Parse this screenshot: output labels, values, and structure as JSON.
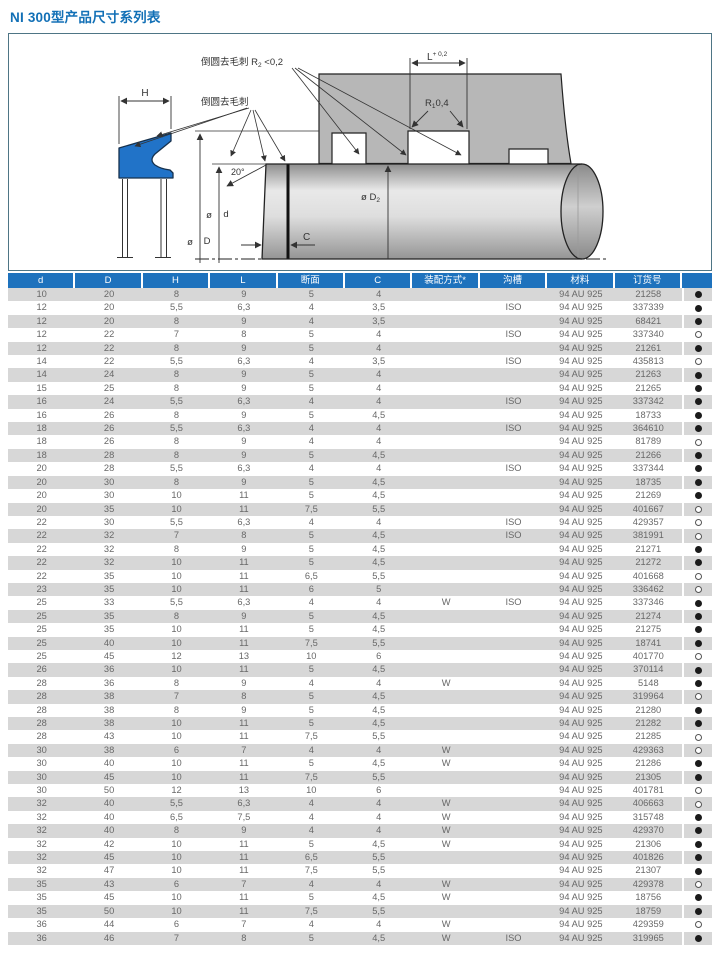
{
  "page": {
    "title": "NI 300型产品尺寸系列表"
  },
  "diagram": {
    "labels": {
      "deburr_note_r": "倒圆去毛刺 R",
      "deburr_note_r_sub": "2",
      "deburr_note_r_tol": " <0,2",
      "deburr_note": "倒圆去毛刺",
      "dim_h": "H",
      "dim_l": "L",
      "dim_l_tol": "+ 0,2",
      "radius_r": "R",
      "radius_r_sub": "1",
      "radius_val": "0,4",
      "angle": "20°",
      "dim_c": "C",
      "dia_d_prefix": "ø",
      "dia_d": "d",
      "dia_D_prefix": "ø",
      "dia_D": "D",
      "dia_D2": "ø D",
      "dia_D2_sub": "2"
    }
  },
  "table": {
    "headers": [
      "d",
      "D",
      "H",
      "L",
      "断面",
      "C",
      "装配方式*",
      "沟槽",
      "材料",
      "订货号",
      ""
    ],
    "rows": [
      [
        "10",
        "20",
        "8",
        "9",
        "5",
        "4",
        "",
        "",
        "94 AU 925",
        "21258",
        "filled"
      ],
      [
        "12",
        "20",
        "5,5",
        "6,3",
        "4",
        "3,5",
        "",
        "ISO",
        "94 AU 925",
        "337339",
        "filled"
      ],
      [
        "12",
        "20",
        "8",
        "9",
        "4",
        "3,5",
        "",
        "",
        "94 AU 925",
        "68421",
        "filled"
      ],
      [
        "12",
        "22",
        "7",
        "8",
        "5",
        "4",
        "",
        "ISO",
        "94 AU 925",
        "337340",
        "open"
      ],
      [
        "12",
        "22",
        "8",
        "9",
        "5",
        "4",
        "",
        "",
        "94 AU 925",
        "21261",
        "filled"
      ],
      [
        "14",
        "22",
        "5,5",
        "6,3",
        "4",
        "3,5",
        "",
        "ISO",
        "94 AU 925",
        "435813",
        "open"
      ],
      [
        "14",
        "24",
        "8",
        "9",
        "5",
        "4",
        "",
        "",
        "94 AU 925",
        "21263",
        "filled"
      ],
      [
        "15",
        "25",
        "8",
        "9",
        "5",
        "4",
        "",
        "",
        "94 AU 925",
        "21265",
        "filled"
      ],
      [
        "16",
        "24",
        "5,5",
        "6,3",
        "4",
        "4",
        "",
        "ISO",
        "94 AU 925",
        "337342",
        "filled"
      ],
      [
        "16",
        "26",
        "8",
        "9",
        "5",
        "4,5",
        "",
        "",
        "94 AU 925",
        "18733",
        "filled"
      ],
      [
        "18",
        "26",
        "5,5",
        "6,3",
        "4",
        "4",
        "",
        "ISO",
        "94 AU 925",
        "364610",
        "filled"
      ],
      [
        "18",
        "26",
        "8",
        "9",
        "4",
        "4",
        "",
        "",
        "94 AU 925",
        "81789",
        "open"
      ],
      [
        "18",
        "28",
        "8",
        "9",
        "5",
        "4,5",
        "",
        "",
        "94 AU 925",
        "21266",
        "filled"
      ],
      [
        "20",
        "28",
        "5,5",
        "6,3",
        "4",
        "4",
        "",
        "ISO",
        "94 AU 925",
        "337344",
        "filled"
      ],
      [
        "20",
        "30",
        "8",
        "9",
        "5",
        "4,5",
        "",
        "",
        "94 AU 925",
        "18735",
        "filled"
      ],
      [
        "20",
        "30",
        "10",
        "11",
        "5",
        "4,5",
        "",
        "",
        "94 AU 925",
        "21269",
        "filled"
      ],
      [
        "20",
        "35",
        "10",
        "11",
        "7,5",
        "5,5",
        "",
        "",
        "94 AU 925",
        "401667",
        "open"
      ],
      [
        "22",
        "30",
        "5,5",
        "6,3",
        "4",
        "4",
        "",
        "ISO",
        "94 AU 925",
        "429357",
        "open"
      ],
      [
        "22",
        "32",
        "7",
        "8",
        "5",
        "4,5",
        "",
        "ISO",
        "94 AU 925",
        "381991",
        "open"
      ],
      [
        "22",
        "32",
        "8",
        "9",
        "5",
        "4,5",
        "",
        "",
        "94 AU 925",
        "21271",
        "filled"
      ],
      [
        "22",
        "32",
        "10",
        "11",
        "5",
        "4,5",
        "",
        "",
        "94 AU 925",
        "21272",
        "filled"
      ],
      [
        "22",
        "35",
        "10",
        "11",
        "6,5",
        "5,5",
        "",
        "",
        "94 AU 925",
        "401668",
        "open"
      ],
      [
        "23",
        "35",
        "10",
        "11",
        "6",
        "5",
        "",
        "",
        "94 AU 925",
        "336462",
        "open"
      ],
      [
        "25",
        "33",
        "5,5",
        "6,3",
        "4",
        "4",
        "W",
        "ISO",
        "94 AU 925",
        "337346",
        "filled"
      ],
      [
        "25",
        "35",
        "8",
        "9",
        "5",
        "4,5",
        "",
        "",
        "94 AU 925",
        "21274",
        "filled"
      ],
      [
        "25",
        "35",
        "10",
        "11",
        "5",
        "4,5",
        "",
        "",
        "94 AU 925",
        "21275",
        "filled"
      ],
      [
        "25",
        "40",
        "10",
        "11",
        "7,5",
        "5,5",
        "",
        "",
        "94 AU 925",
        "18741",
        "filled"
      ],
      [
        "25",
        "45",
        "12",
        "13",
        "10",
        "6",
        "",
        "",
        "94 AU 925",
        "401770",
        "open"
      ],
      [
        "26",
        "36",
        "10",
        "11",
        "5",
        "4,5",
        "",
        "",
        "94 AU 925",
        "370114",
        "filled"
      ],
      [
        "28",
        "36",
        "8",
        "9",
        "4",
        "4",
        "W",
        "",
        "94 AU 925",
        "5148",
        "filled"
      ],
      [
        "28",
        "38",
        "7",
        "8",
        "5",
        "4,5",
        "",
        "",
        "94 AU 925",
        "319964",
        "open"
      ],
      [
        "28",
        "38",
        "8",
        "9",
        "5",
        "4,5",
        "",
        "",
        "94 AU 925",
        "21280",
        "filled"
      ],
      [
        "28",
        "38",
        "10",
        "11",
        "5",
        "4,5",
        "",
        "",
        "94 AU 925",
        "21282",
        "filled"
      ],
      [
        "28",
        "43",
        "10",
        "11",
        "7,5",
        "5,5",
        "",
        "",
        "94 AU 925",
        "21285",
        "open"
      ],
      [
        "30",
        "38",
        "6",
        "7",
        "4",
        "4",
        "W",
        "",
        "94 AU 925",
        "429363",
        "open"
      ],
      [
        "30",
        "40",
        "10",
        "11",
        "5",
        "4,5",
        "W",
        "",
        "94 AU 925",
        "21286",
        "filled"
      ],
      [
        "30",
        "45",
        "10",
        "11",
        "7,5",
        "5,5",
        "",
        "",
        "94 AU 925",
        "21305",
        "filled"
      ],
      [
        "30",
        "50",
        "12",
        "13",
        "10",
        "6",
        "",
        "",
        "94 AU 925",
        "401781",
        "open"
      ],
      [
        "32",
        "40",
        "5,5",
        "6,3",
        "4",
        "4",
        "W",
        "",
        "94 AU 925",
        "406663",
        "open"
      ],
      [
        "32",
        "40",
        "6,5",
        "7,5",
        "4",
        "4",
        "W",
        "",
        "94 AU 925",
        "315748",
        "filled"
      ],
      [
        "32",
        "40",
        "8",
        "9",
        "4",
        "4",
        "W",
        "",
        "94 AU 925",
        "429370",
        "filled"
      ],
      [
        "32",
        "42",
        "10",
        "11",
        "5",
        "4,5",
        "W",
        "",
        "94 AU 925",
        "21306",
        "filled"
      ],
      [
        "32",
        "45",
        "10",
        "11",
        "6,5",
        "5,5",
        "",
        "",
        "94 AU 925",
        "401826",
        "filled"
      ],
      [
        "32",
        "47",
        "10",
        "11",
        "7,5",
        "5,5",
        "",
        "",
        "94 AU 925",
        "21307",
        "filled"
      ],
      [
        "35",
        "43",
        "6",
        "7",
        "4",
        "4",
        "W",
        "",
        "94 AU 925",
        "429378",
        "open"
      ],
      [
        "35",
        "45",
        "10",
        "11",
        "5",
        "4,5",
        "W",
        "",
        "94 AU 925",
        "18756",
        "filled"
      ],
      [
        "35",
        "50",
        "10",
        "11",
        "7,5",
        "5,5",
        "",
        "",
        "94 AU 925",
        "18759",
        "filled"
      ],
      [
        "36",
        "44",
        "6",
        "7",
        "4",
        "4",
        "W",
        "",
        "94 AU 925",
        "429359",
        "open"
      ],
      [
        "36",
        "46",
        "7",
        "8",
        "5",
        "4,5",
        "W",
        "ISO",
        "94 AU 925",
        "319965",
        "filled"
      ]
    ]
  }
}
